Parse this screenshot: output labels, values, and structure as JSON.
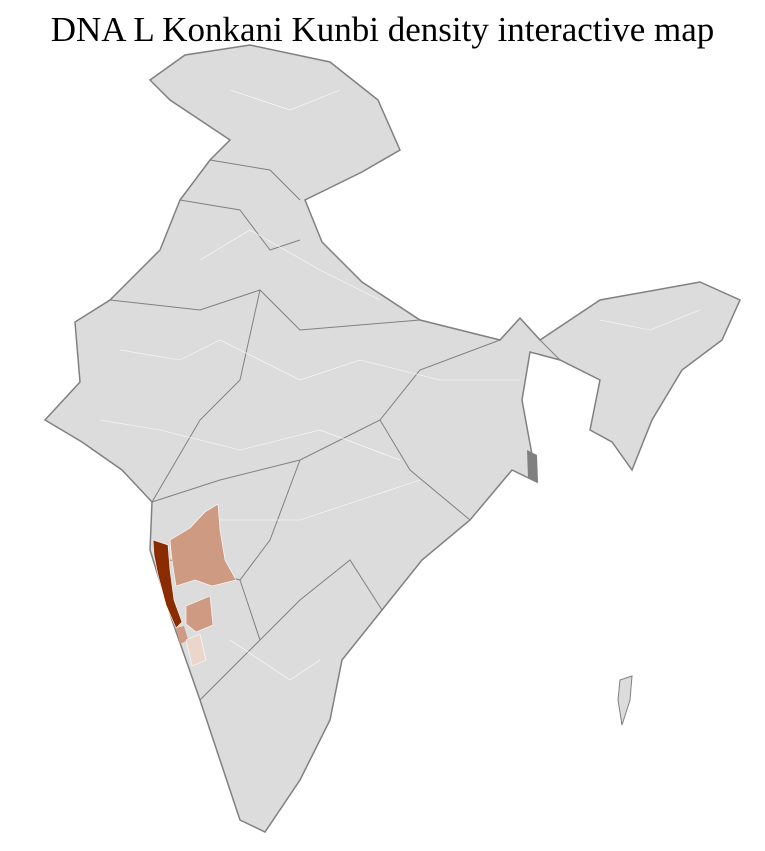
{
  "title": "DNA L Konkani Kunbi density interactive map",
  "colors": {
    "base": "#dcdcdc",
    "border": "#808080",
    "district_line": "#ffffff",
    "high": "#8b2b00",
    "medium": "#cf9a82",
    "low": "#ecd5ca"
  }
}
